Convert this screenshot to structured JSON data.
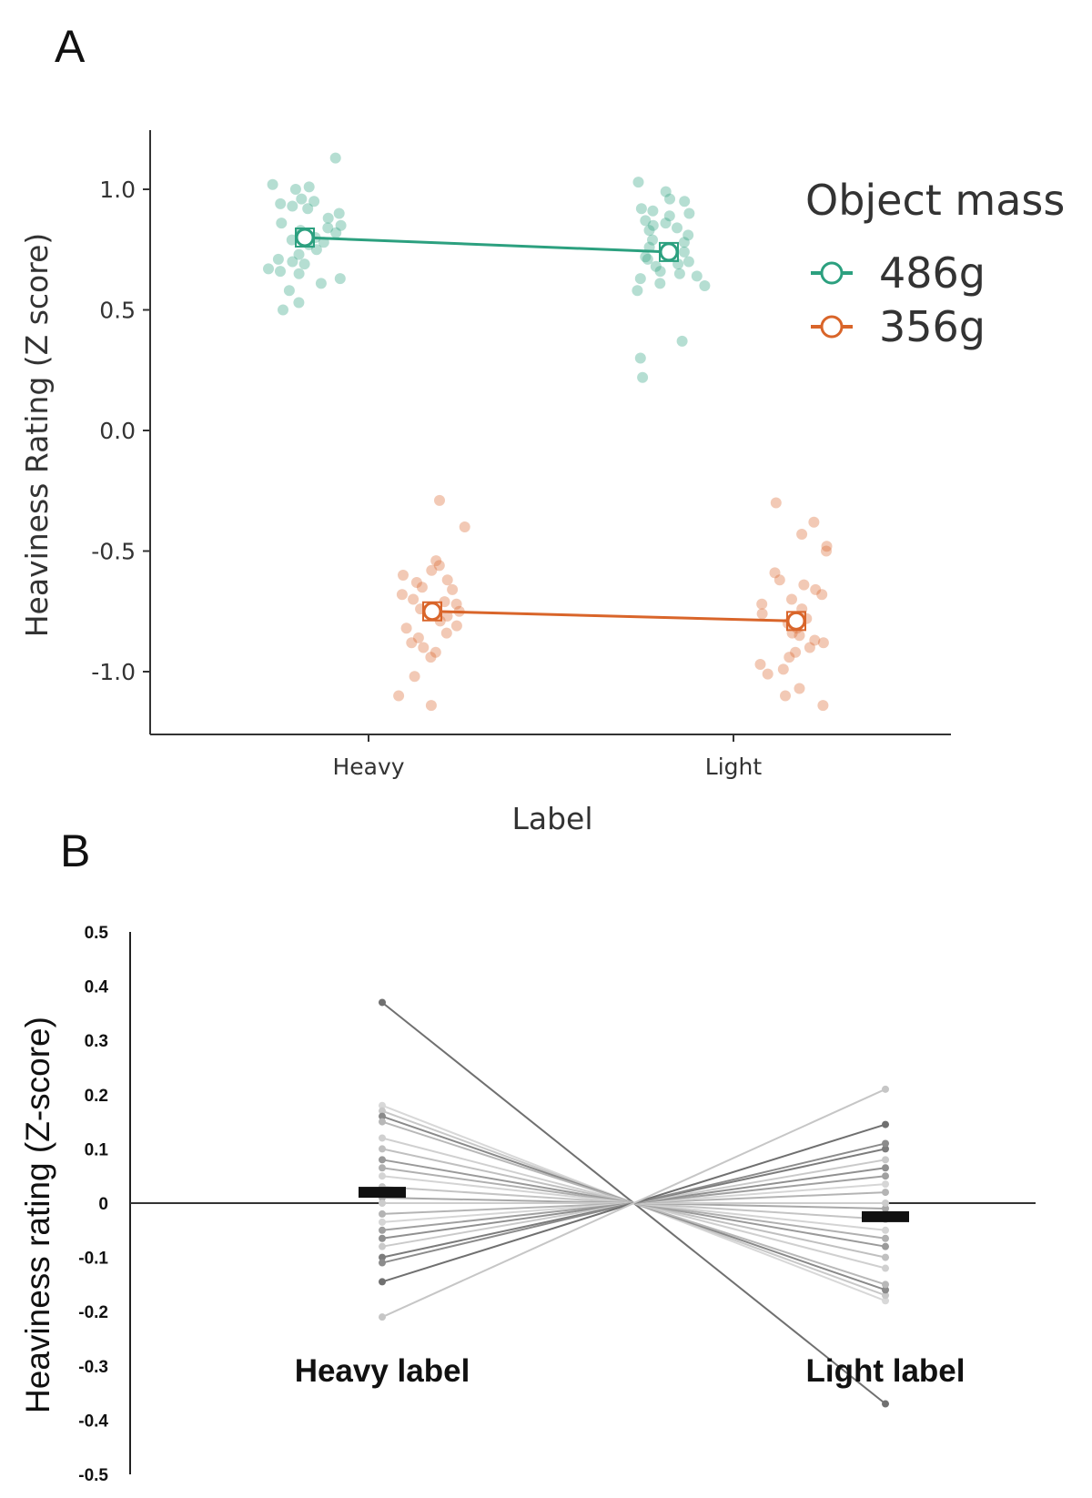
{
  "panels": {
    "a_letter": "A",
    "b_letter": "B"
  },
  "colors": {
    "heavy_486": "#2ca07f",
    "light_356": "#d9652a",
    "axis": "#333333",
    "mean_bar": "#111111"
  },
  "chart_data": [
    {
      "panel": "A",
      "type": "scatter",
      "xlabel": "Label",
      "ylabel": "Heaviness Rating (Z score)",
      "categories": [
        "Heavy",
        "Light"
      ],
      "ylim": [
        -1.25,
        1.25
      ],
      "yticks": [
        "1.0",
        "0.5",
        "0.0",
        "-0.5",
        "-1.0"
      ],
      "ytick_values": [
        1.0,
        0.5,
        0.0,
        -0.5,
        -1.0
      ],
      "legend": {
        "title": "Object mass",
        "position": "top-right"
      },
      "series": [
        {
          "name": "486g",
          "color": "#2ca07f",
          "means": [
            0.8,
            0.74
          ],
          "points": [
            [
              1.13,
              1.02,
              1.01,
              1.0,
              0.96,
              0.95,
              0.94,
              0.93,
              0.92,
              0.9,
              0.88,
              0.86,
              0.85,
              0.84,
              0.83,
              0.82,
              0.81,
              0.8,
              0.79,
              0.78,
              0.77,
              0.75,
              0.73,
              0.71,
              0.7,
              0.69,
              0.67,
              0.66,
              0.65,
              0.63,
              0.61,
              0.58,
              0.53,
              0.5
            ],
            [
              1.03,
              0.99,
              0.96,
              0.95,
              0.92,
              0.91,
              0.9,
              0.89,
              0.87,
              0.86,
              0.85,
              0.84,
              0.83,
              0.81,
              0.79,
              0.78,
              0.76,
              0.74,
              0.72,
              0.71,
              0.7,
              0.69,
              0.68,
              0.66,
              0.65,
              0.64,
              0.63,
              0.61,
              0.6,
              0.58,
              0.37,
              0.3,
              0.22
            ]
          ]
        },
        {
          "name": "356g",
          "color": "#d9652a",
          "means": [
            -0.75,
            -0.79
          ],
          "points": [
            [
              -0.29,
              -0.4,
              -0.54,
              -0.56,
              -0.58,
              -0.6,
              -0.62,
              -0.63,
              -0.65,
              -0.66,
              -0.68,
              -0.7,
              -0.71,
              -0.72,
              -0.74,
              -0.75,
              -0.77,
              -0.79,
              -0.81,
              -0.82,
              -0.84,
              -0.86,
              -0.88,
              -0.9,
              -0.92,
              -0.94,
              -1.02,
              -1.1,
              -1.14
            ],
            [
              -0.3,
              -0.38,
              -0.43,
              -0.48,
              -0.5,
              -0.59,
              -0.62,
              -0.64,
              -0.66,
              -0.68,
              -0.7,
              -0.72,
              -0.74,
              -0.76,
              -0.78,
              -0.8,
              -0.82,
              -0.84,
              -0.85,
              -0.87,
              -0.88,
              -0.9,
              -0.92,
              -0.94,
              -0.97,
              -0.99,
              -1.01,
              -1.07,
              -1.1,
              -1.14
            ]
          ]
        }
      ]
    },
    {
      "panel": "B",
      "type": "line",
      "ylabel": "Heaviness rating (Z-score)",
      "categories": [
        "Heavy label",
        "Light label"
      ],
      "ylim": [
        -0.5,
        0.5
      ],
      "yticks": [
        "0.5",
        "0.4",
        "0.3",
        "0.2",
        "0.1",
        "0",
        "-0.1",
        "-0.2",
        "-0.3",
        "-0.4",
        "-0.5"
      ],
      "ytick_values": [
        0.5,
        0.4,
        0.3,
        0.2,
        0.1,
        0,
        -0.1,
        -0.2,
        -0.3,
        -0.4,
        -0.5
      ],
      "means": [
        0.02,
        -0.025
      ],
      "participants": [
        {
          "heavy": 0.37,
          "light": -0.37,
          "shade": "#707070"
        },
        {
          "heavy": 0.18,
          "light": -0.18,
          "shade": "#d8d8d8"
        },
        {
          "heavy": 0.17,
          "light": -0.17,
          "shade": "#c8c8c8"
        },
        {
          "heavy": 0.16,
          "light": -0.16,
          "shade": "#8a8a8a"
        },
        {
          "heavy": 0.15,
          "light": -0.15,
          "shade": "#b8b8b8"
        },
        {
          "heavy": 0.12,
          "light": -0.12,
          "shade": "#d0d0d0"
        },
        {
          "heavy": 0.1,
          "light": -0.1,
          "shade": "#c0c0c0"
        },
        {
          "heavy": 0.08,
          "light": -0.08,
          "shade": "#9a9a9a"
        },
        {
          "heavy": 0.065,
          "light": -0.065,
          "shade": "#b0b0b0"
        },
        {
          "heavy": 0.05,
          "light": -0.05,
          "shade": "#d4d4d4"
        },
        {
          "heavy": 0.03,
          "light": -0.03,
          "shade": "#c4c4c4"
        },
        {
          "heavy": 0.01,
          "light": -0.01,
          "shade": "#a8a8a8"
        },
        {
          "heavy": 0.0,
          "light": 0.0,
          "shade": "#cccccc"
        },
        {
          "heavy": -0.02,
          "light": 0.02,
          "shade": "#b4b4b4"
        },
        {
          "heavy": -0.035,
          "light": 0.035,
          "shade": "#d6d6d6"
        },
        {
          "heavy": -0.05,
          "light": 0.05,
          "shade": "#a0a0a0"
        },
        {
          "heavy": -0.065,
          "light": 0.065,
          "shade": "#909090"
        },
        {
          "heavy": -0.08,
          "light": 0.08,
          "shade": "#cacaca"
        },
        {
          "heavy": -0.1,
          "light": 0.1,
          "shade": "#7c7c7c"
        },
        {
          "heavy": -0.11,
          "light": 0.11,
          "shade": "#8c8c8c"
        },
        {
          "heavy": -0.145,
          "light": 0.145,
          "shade": "#707070"
        },
        {
          "heavy": -0.21,
          "light": 0.21,
          "shade": "#c6c6c6"
        }
      ]
    }
  ]
}
